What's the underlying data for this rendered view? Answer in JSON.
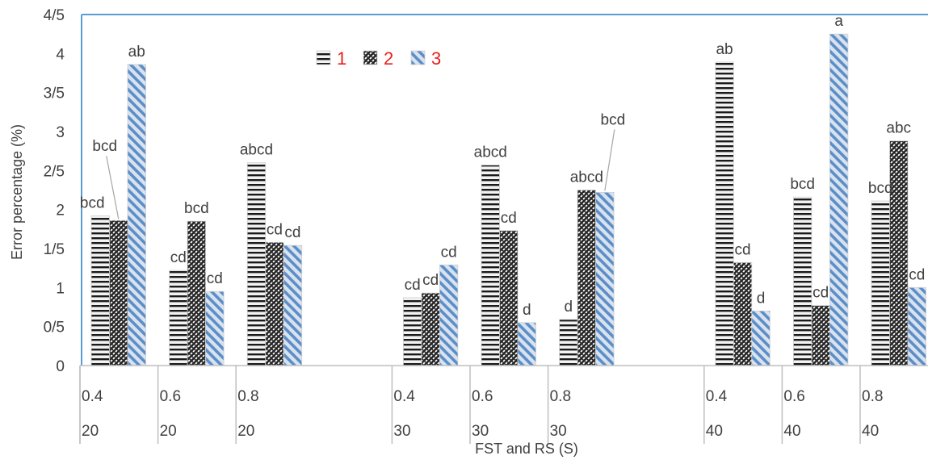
{
  "chart_data": {
    "type": "bar",
    "title": "",
    "ylabel": "Error percentage (%)",
    "xlabel": "FST and RS (S)",
    "ylim": [
      0,
      4.5
    ],
    "yticks": [
      {
        "value": 0,
        "label": "0"
      },
      {
        "value": 0.5,
        "label": "0/5"
      },
      {
        "value": 1,
        "label": "1"
      },
      {
        "value": 1.5,
        "label": "1/5"
      },
      {
        "value": 2,
        "label": "2"
      },
      {
        "value": 2.5,
        "label": "2/5"
      },
      {
        "value": 3,
        "label": "3"
      },
      {
        "value": 3.5,
        "label": "3/5"
      },
      {
        "value": 4,
        "label": "4"
      },
      {
        "value": 4.5,
        "label": "4/5"
      }
    ],
    "legend_position": "top-left",
    "categories": [
      {
        "fst": "0.4",
        "rs": "20"
      },
      {
        "fst": "0.6",
        "rs": "20"
      },
      {
        "fst": "0.8",
        "rs": "20"
      },
      {
        "fst": "",
        "rs": ""
      },
      {
        "fst": "0.4",
        "rs": "30"
      },
      {
        "fst": "0.6",
        "rs": "30"
      },
      {
        "fst": "0.8",
        "rs": "30"
      },
      {
        "fst": "",
        "rs": ""
      },
      {
        "fst": "0.4",
        "rs": "40"
      },
      {
        "fst": "0.6",
        "rs": "40"
      },
      {
        "fst": "0.8",
        "rs": "40"
      }
    ],
    "series": [
      {
        "name": "1",
        "pattern": "horizontal",
        "values": [
          1.92,
          1.22,
          2.6,
          null,
          0.87,
          2.57,
          0.59,
          null,
          3.89,
          2.16,
          2.11
        ]
      },
      {
        "name": "2",
        "pattern": "crosshatch",
        "values": [
          1.86,
          1.85,
          1.58,
          null,
          0.93,
          1.73,
          2.25,
          null,
          1.32,
          0.77,
          2.88
        ]
      },
      {
        "name": "3",
        "pattern": "diagonal",
        "values": [
          3.86,
          0.95,
          1.54,
          null,
          1.29,
          0.55,
          2.22,
          null,
          0.7,
          4.25,
          1.0
        ]
      }
    ],
    "data_labels": [
      [
        "bcd",
        "bcd",
        "ab"
      ],
      [
        "cd",
        "bcd",
        "cd"
      ],
      [
        "abcd",
        "cd",
        "cd"
      ],
      [],
      [
        "cd",
        "cd",
        "cd"
      ],
      [
        "abcd",
        "cd",
        "d"
      ],
      [
        "d",
        "abcd",
        "bcd"
      ],
      [],
      [
        "ab",
        "cd",
        "d"
      ],
      [
        "bcd",
        "cd",
        "a"
      ],
      [
        "bcd",
        "abc",
        "cd"
      ]
    ],
    "colors": {
      "series1_fill": "#f2f2f2",
      "series1_stripe": "#1a1a1a",
      "series2_fill": "#ffffff",
      "series2_stripe": "#262626",
      "series3_fill": "#d9e2ef",
      "series3_stripe": "#5b8ec7",
      "plot_border": "#5b9bd5",
      "legend_text": "#e8201c",
      "text": "#404040"
    }
  }
}
